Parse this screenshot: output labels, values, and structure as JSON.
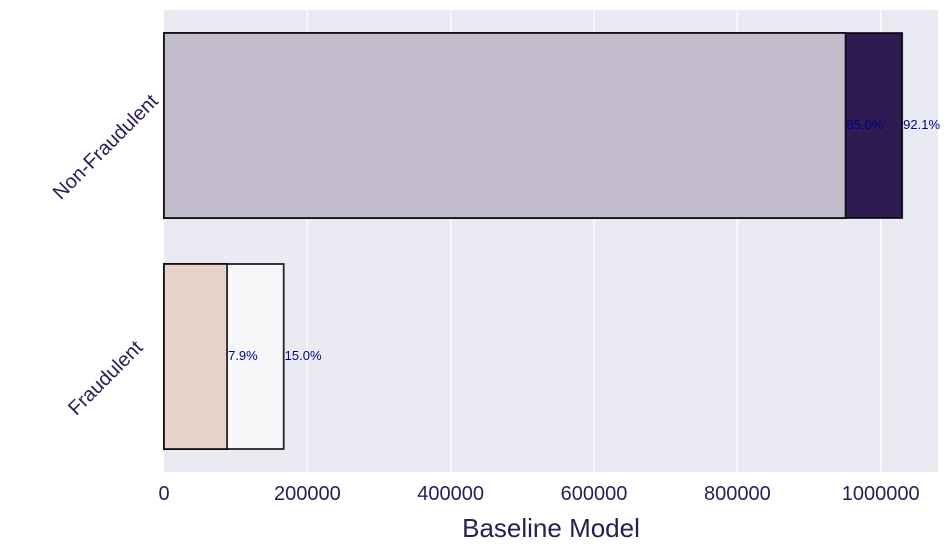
{
  "chart_data": {
    "type": "bar",
    "orientation": "horizontal",
    "stacked": false,
    "overlaid": true,
    "title": "",
    "xlabel": "Baseline Model",
    "ylabel": "",
    "categories": [
      "Non-Fraudulent",
      "Fraudulent"
    ],
    "xlim": [
      0,
      1080000
    ],
    "xticks": [
      0,
      200000,
      400000,
      600000,
      800000,
      1000000
    ],
    "xtick_labels": [
      "0",
      "200000",
      "400000",
      "600000",
      "800000",
      "1000000"
    ],
    "grid": true,
    "legend": "none",
    "series": [
      {
        "values": [
          1030000,
          167000
        ],
        "labels": [
          "92.1%",
          "15.0%"
        ],
        "colors": [
          "#2d1b52",
          "#f7f7f9"
        ]
      },
      {
        "values": [
          951000,
          88000
        ],
        "labels": [
          "85.0%",
          "7.9%"
        ],
        "colors": [
          "#c2bccc",
          "#e5d3cc"
        ]
      }
    ]
  },
  "colors": {
    "plot_background": "#eaeaf2",
    "grid": "#ffffff",
    "text": "#2d1b52",
    "data_label": "#00008b",
    "bar_edge": "#000000"
  }
}
